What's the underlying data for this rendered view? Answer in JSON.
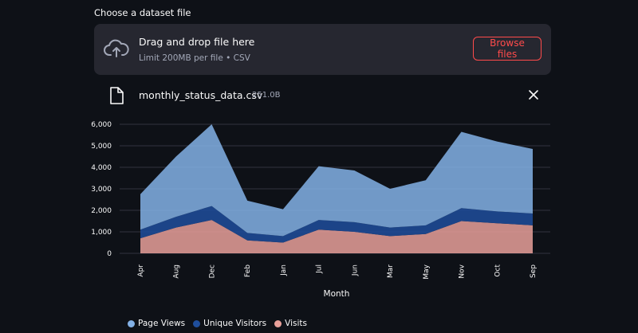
{
  "uploader": {
    "label": "Choose a dataset file",
    "title": "Drag and drop file here",
    "subtitle": "Limit 200MB per file • CSV",
    "browse_label": "Browse files"
  },
  "file": {
    "name": "monthly_status_data.csv",
    "size": "251.0B"
  },
  "chart_data": {
    "type": "area",
    "stacked": true,
    "categories": [
      "Apr",
      "Aug",
      "Dec",
      "Feb",
      "Jan",
      "Jul",
      "Jun",
      "Mar",
      "May",
      "Nov",
      "Oct",
      "Sep"
    ],
    "series": [
      {
        "name": "Visits",
        "color": "#e8a09a",
        "values": [
          700,
          1200,
          1550,
          600,
          500,
          1100,
          1000,
          800,
          900,
          1500,
          1400,
          1300
        ]
      },
      {
        "name": "Unique Visitors",
        "color": "#1f4e9c",
        "values": [
          400,
          500,
          650,
          350,
          300,
          450,
          450,
          400,
          400,
          600,
          550,
          550
        ]
      },
      {
        "name": "Page Views",
        "color": "#83b1e6",
        "values": [
          1650,
          2800,
          3800,
          1500,
          1250,
          2500,
          2400,
          1800,
          2100,
          3550,
          3250,
          3000
        ]
      }
    ],
    "ylim": [
      0,
      6000
    ],
    "yticks": [
      "0",
      "1,000",
      "2,000",
      "3,000",
      "4,000",
      "5,000",
      "6,000"
    ],
    "xlabel": "Month",
    "ylabel": "",
    "grid": true,
    "legend": "bottom"
  }
}
